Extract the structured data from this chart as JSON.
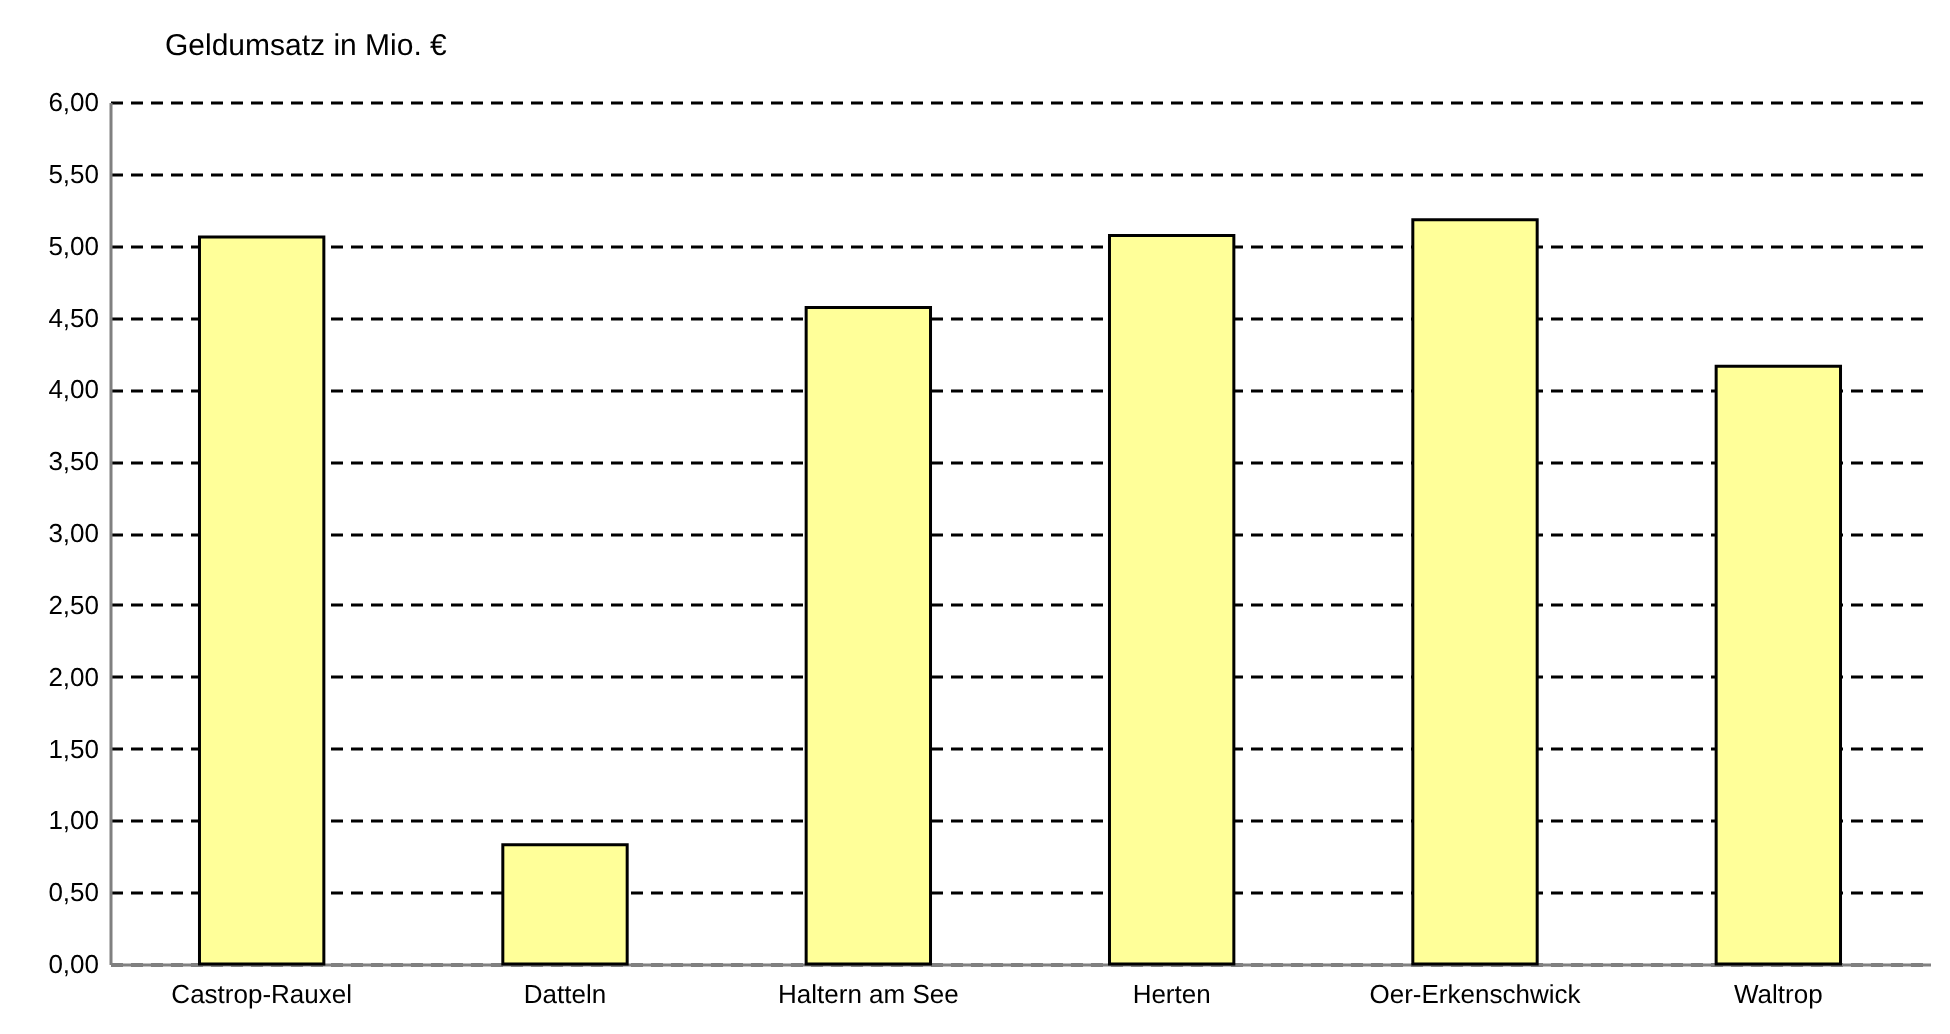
{
  "chart_data": {
    "type": "bar",
    "ylabel": "Geldumsatz in Mio. €",
    "categories": [
      "Castrop-Rauxel",
      "Datteln",
      "Haltern am See",
      "Herten",
      "Oer-Erkenschwick",
      "Waltrop"
    ],
    "series": [
      {
        "color": "#ffff99",
        "values": [
          5.06,
          0.83,
          4.57,
          5.07,
          5.18,
          4.16
        ]
      }
    ],
    "ylim": [
      0,
      6
    ],
    "yticks": [
      {
        "value": 0,
        "label": "0,00"
      },
      {
        "value": 0.5,
        "label": "0,50"
      },
      {
        "value": 1,
        "label": "1,00"
      },
      {
        "value": 1.5,
        "label": "1,50"
      },
      {
        "value": 2,
        "label": "2,00"
      },
      {
        "value": 2.5,
        "label": "2,50"
      },
      {
        "value": 3,
        "label": "3,00"
      },
      {
        "value": 3.5,
        "label": "3,50"
      },
      {
        "value": 4,
        "label": "4,00"
      },
      {
        "value": 4.5,
        "label": "4,50"
      },
      {
        "value": 5,
        "label": "5,00"
      },
      {
        "value": 5.5,
        "label": "5,50"
      },
      {
        "value": 6,
        "label": "6,00"
      }
    ],
    "grid": "y",
    "line_style": "dashed"
  }
}
